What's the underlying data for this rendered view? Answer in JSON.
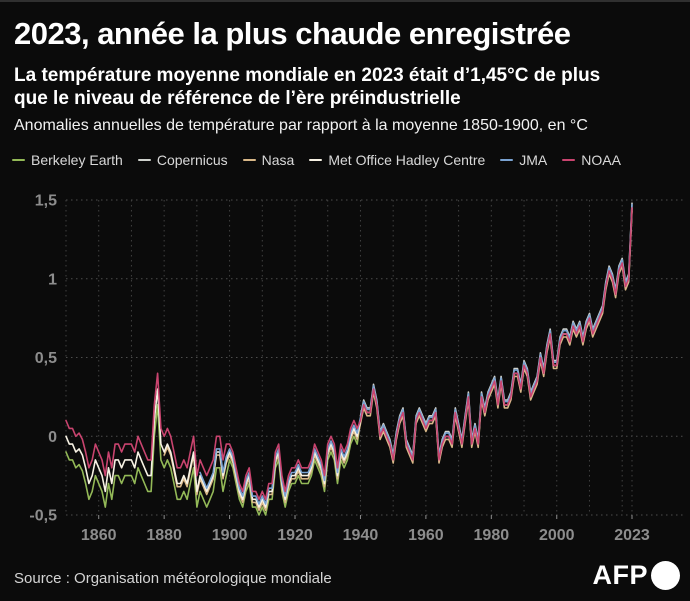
{
  "header": {
    "title": "2023, année la plus chaude enregistrée",
    "subtitle_line1": "La température moyenne mondiale en 2023 était d’1,45°C de plus",
    "subtitle_line2": "que le niveau de référence de l’ère préindustrielle",
    "note": "Anomalies annuelles de température par rapport à la moyenne 1850-1900, en °C"
  },
  "footer": {
    "source": "Source : Organisation météorologique mondiale",
    "logo": "AFP"
  },
  "colors": {
    "background": "#0b0b0b",
    "title_text": "#ffffff",
    "legend_text": "#d9d9d9",
    "axis_labels": "#8d8d8d",
    "grid": "#4d4d4d",
    "grid_vertical": "#414141"
  },
  "chart_data": {
    "type": "line",
    "title": "Anomalies annuelles de température par rapport à la moyenne 1850-1900, en °C",
    "xlabel": "",
    "ylabel": "°C",
    "xlim": [
      1850,
      2023
    ],
    "ylim": [
      -0.5,
      1.5
    ],
    "grid": "dotted",
    "legend_position": "top",
    "y_ticks": [
      {
        "value": 1.5,
        "label": "1,5"
      },
      {
        "value": 1.0,
        "label": "1"
      },
      {
        "value": 0.5,
        "label": "0,5"
      },
      {
        "value": 0.0,
        "label": "0"
      },
      {
        "value": -0.5,
        "label": "-0,5"
      }
    ],
    "x_ticks": [
      {
        "year": 1860,
        "label": "1860"
      },
      {
        "year": 1880,
        "label": "1880"
      },
      {
        "year": 1900,
        "label": "1900"
      },
      {
        "year": 1920,
        "label": "1920"
      },
      {
        "year": 1940,
        "label": "1940"
      },
      {
        "year": 1960,
        "label": "1960"
      },
      {
        "year": 1980,
        "label": "1980"
      },
      {
        "year": 2000,
        "label": "2000"
      },
      {
        "year": 2023,
        "label": "2023"
      }
    ],
    "x_gridline_years": [
      1850,
      1860,
      1870,
      1880,
      1890,
      1900,
      1910,
      1920,
      1930,
      1940,
      1950,
      1960,
      1970,
      1980,
      1990,
      2000,
      2010,
      2020,
      2023
    ],
    "series": [
      {
        "name": "Berkeley Earth",
        "color": "#93b957",
        "start_year": 1850,
        "values": [
          -0.1,
          -0.15,
          -0.15,
          -0.2,
          -0.18,
          -0.22,
          -0.3,
          -0.4,
          -0.35,
          -0.25,
          -0.3,
          -0.35,
          -0.45,
          -0.3,
          -0.4,
          -0.25,
          -0.25,
          -0.3,
          -0.25,
          -0.25,
          -0.25,
          -0.3,
          -0.2,
          -0.25,
          -0.3,
          -0.35,
          -0.35,
          0.0,
          0.2,
          -0.15,
          -0.2,
          -0.15,
          -0.2,
          -0.3,
          -0.4,
          -0.4,
          -0.35,
          -0.4,
          -0.3,
          -0.2,
          -0.45,
          -0.35,
          -0.4,
          -0.45,
          -0.4,
          -0.35,
          -0.2,
          -0.2,
          -0.35,
          -0.25,
          -0.15,
          -0.2,
          -0.3,
          -0.4,
          -0.45,
          -0.35,
          -0.3,
          -0.45,
          -0.45,
          -0.5,
          -0.45,
          -0.5,
          -0.4,
          -0.4,
          -0.2,
          -0.15,
          -0.35,
          -0.45,
          -0.35,
          -0.3,
          -0.3,
          -0.25,
          -0.3,
          -0.3,
          -0.3,
          -0.25,
          -0.15,
          -0.2,
          -0.25,
          -0.35,
          -0.15,
          -0.1,
          -0.15,
          -0.3,
          -0.15,
          -0.2,
          -0.15,
          -0.05,
          0.0,
          -0.05,
          0.1,
          0.2,
          0.15,
          0.15,
          0.3,
          0.2,
          0.0,
          0.05,
          0.0,
          -0.05,
          -0.15,
          0.0,
          0.1,
          0.15,
          -0.05,
          -0.1,
          -0.15,
          0.1,
          0.15,
          0.1,
          0.05,
          0.1,
          0.1,
          0.15,
          -0.15,
          -0.05,
          0.0,
          0.0,
          -0.05,
          0.15,
          0.05,
          -0.05,
          0.1,
          0.25,
          -0.05,
          0.05,
          -0.05,
          0.25,
          0.15,
          0.25,
          0.3,
          0.35,
          0.2,
          0.35,
          0.2,
          0.2,
          0.25,
          0.4,
          0.4,
          0.3,
          0.45,
          0.4,
          0.25,
          0.3,
          0.35,
          0.5,
          0.4,
          0.55,
          0.65,
          0.45,
          0.45,
          0.6,
          0.65,
          0.65,
          0.6,
          0.7,
          0.65,
          0.7,
          0.6,
          0.7,
          0.75,
          0.65,
          0.7,
          0.75,
          0.8,
          0.95,
          1.05,
          1.0,
          0.9,
          1.05,
          1.1,
          0.95,
          1.0,
          1.45
        ]
      },
      {
        "name": "Copernicus",
        "color": "#cfd2cd",
        "start_year": 1940,
        "values": [
          0.13,
          0.23,
          0.18,
          0.18,
          0.33,
          0.23,
          0.03,
          0.08,
          0.03,
          -0.02,
          -0.12,
          0.03,
          0.13,
          0.18,
          -0.02,
          -0.07,
          -0.12,
          0.13,
          0.18,
          0.13,
          0.08,
          0.13,
          0.13,
          0.18,
          -0.12,
          -0.02,
          0.03,
          0.03,
          -0.02,
          0.18,
          0.08,
          -0.02,
          0.13,
          0.28,
          -0.02,
          0.08,
          -0.02,
          0.28,
          0.18,
          0.28,
          0.33,
          0.38,
          0.23,
          0.38,
          0.23,
          0.23,
          0.28,
          0.43,
          0.43,
          0.33,
          0.48,
          0.43,
          0.28,
          0.33,
          0.38,
          0.53,
          0.43,
          0.58,
          0.68,
          0.48,
          0.48,
          0.63,
          0.68,
          0.68,
          0.63,
          0.73,
          0.68,
          0.73,
          0.63,
          0.73,
          0.78,
          0.68,
          0.73,
          0.78,
          0.83,
          0.98,
          1.08,
          1.03,
          0.93,
          1.08,
          1.13,
          0.98,
          1.03,
          1.48
        ]
      },
      {
        "name": "Nasa",
        "color": "#d9b888",
        "start_year": 1880,
        "values": [
          -0.12,
          -0.07,
          -0.12,
          -0.22,
          -0.32,
          -0.32,
          -0.27,
          -0.32,
          -0.22,
          -0.12,
          -0.37,
          -0.27,
          -0.32,
          -0.37,
          -0.32,
          -0.27,
          -0.12,
          -0.12,
          -0.27,
          -0.17,
          -0.12,
          -0.17,
          -0.27,
          -0.37,
          -0.42,
          -0.32,
          -0.27,
          -0.42,
          -0.42,
          -0.47,
          -0.42,
          -0.47,
          -0.37,
          -0.37,
          -0.17,
          -0.12,
          -0.32,
          -0.42,
          -0.32,
          -0.27,
          -0.27,
          -0.22,
          -0.27,
          -0.27,
          -0.27,
          -0.22,
          -0.12,
          -0.17,
          -0.22,
          -0.32,
          -0.12,
          -0.07,
          -0.12,
          -0.27,
          -0.12,
          -0.17,
          -0.12,
          -0.02,
          0.03,
          -0.02,
          0.08,
          0.18,
          0.13,
          0.13,
          0.28,
          0.18,
          -0.02,
          0.03,
          -0.02,
          -0.07,
          -0.17,
          -0.02,
          0.08,
          0.13,
          -0.07,
          -0.12,
          -0.17,
          0.08,
          0.13,
          0.08,
          0.03,
          0.08,
          0.08,
          0.13,
          -0.17,
          -0.07,
          -0.02,
          -0.02,
          -0.07,
          0.13,
          0.03,
          -0.07,
          0.08,
          0.23,
          -0.07,
          0.03,
          -0.07,
          0.23,
          0.13,
          0.23,
          0.28,
          0.33,
          0.18,
          0.33,
          0.18,
          0.18,
          0.23,
          0.38,
          0.38,
          0.28,
          0.43,
          0.38,
          0.23,
          0.28,
          0.33,
          0.48,
          0.38,
          0.53,
          0.63,
          0.43,
          0.43,
          0.58,
          0.63,
          0.63,
          0.58,
          0.68,
          0.63,
          0.68,
          0.58,
          0.68,
          0.73,
          0.63,
          0.68,
          0.73,
          0.78,
          0.93,
          1.03,
          0.98,
          0.88,
          1.03,
          1.08,
          0.93,
          0.98,
          1.43
        ]
      },
      {
        "name": "Met Office Hadley Centre",
        "color": "#f7f2e4",
        "start_year": 1850,
        "values": [
          0.0,
          -0.05,
          -0.05,
          -0.1,
          -0.08,
          -0.12,
          -0.2,
          -0.3,
          -0.25,
          -0.15,
          -0.2,
          -0.25,
          -0.35,
          -0.2,
          -0.3,
          -0.15,
          -0.15,
          -0.2,
          -0.15,
          -0.15,
          -0.15,
          -0.2,
          -0.1,
          -0.15,
          -0.2,
          -0.25,
          -0.25,
          0.1,
          0.3,
          -0.05,
          -0.1,
          -0.05,
          -0.1,
          -0.2,
          -0.3,
          -0.3,
          -0.25,
          -0.3,
          -0.2,
          -0.1,
          -0.35,
          -0.25,
          -0.3,
          -0.35,
          -0.3,
          -0.25,
          -0.1,
          -0.1,
          -0.25,
          -0.15,
          -0.1,
          -0.15,
          -0.25,
          -0.35,
          -0.4,
          -0.3,
          -0.25,
          -0.4,
          -0.4,
          -0.45,
          -0.4,
          -0.45,
          -0.35,
          -0.35,
          -0.15,
          -0.1,
          -0.3,
          -0.4,
          -0.3,
          -0.25,
          -0.25,
          -0.2,
          -0.25,
          -0.25,
          -0.25,
          -0.2,
          -0.1,
          -0.15,
          -0.2,
          -0.3,
          -0.1,
          -0.05,
          -0.1,
          -0.25,
          -0.1,
          -0.15,
          -0.1,
          0.0,
          0.05,
          0.0,
          0.1,
          0.2,
          0.15,
          0.15,
          0.3,
          0.2,
          0.0,
          0.05,
          0.0,
          -0.05,
          -0.15,
          0.0,
          0.1,
          0.15,
          -0.05,
          -0.1,
          -0.15,
          0.1,
          0.15,
          0.1,
          0.05,
          0.1,
          0.1,
          0.15,
          -0.15,
          -0.05,
          0.0,
          0.0,
          -0.05,
          0.15,
          0.05,
          -0.05,
          0.1,
          0.25,
          -0.05,
          0.05,
          -0.05,
          0.25,
          0.15,
          0.25,
          0.3,
          0.35,
          0.2,
          0.35,
          0.2,
          0.2,
          0.25,
          0.4,
          0.4,
          0.3,
          0.45,
          0.4,
          0.25,
          0.3,
          0.35,
          0.5,
          0.4,
          0.55,
          0.65,
          0.45,
          0.45,
          0.6,
          0.65,
          0.65,
          0.6,
          0.7,
          0.65,
          0.7,
          0.6,
          0.7,
          0.75,
          0.65,
          0.7,
          0.75,
          0.8,
          0.95,
          1.05,
          1.0,
          0.9,
          1.05,
          1.1,
          0.95,
          1.0,
          1.45
        ]
      },
      {
        "name": "JMA",
        "color": "#7aa3d2",
        "start_year": 1891,
        "values": [
          -0.23,
          -0.28,
          -0.33,
          -0.28,
          -0.23,
          -0.08,
          -0.08,
          -0.23,
          -0.13,
          -0.08,
          -0.13,
          -0.23,
          -0.33,
          -0.38,
          -0.28,
          -0.23,
          -0.38,
          -0.38,
          -0.43,
          -0.38,
          -0.43,
          -0.33,
          -0.33,
          -0.13,
          -0.08,
          -0.28,
          -0.38,
          -0.28,
          -0.23,
          -0.23,
          -0.18,
          -0.23,
          -0.23,
          -0.23,
          -0.18,
          -0.08,
          -0.13,
          -0.18,
          -0.28,
          -0.08,
          -0.03,
          -0.08,
          -0.23,
          -0.08,
          -0.13,
          -0.08,
          0.02,
          0.07,
          0.02,
          0.12,
          0.22,
          0.17,
          0.17,
          0.32,
          0.22,
          0.02,
          0.07,
          0.02,
          -0.03,
          -0.13,
          0.02,
          0.12,
          0.17,
          -0.03,
          -0.08,
          -0.13,
          0.12,
          0.17,
          0.12,
          0.07,
          0.12,
          0.12,
          0.17,
          -0.13,
          -0.03,
          0.02,
          0.02,
          -0.03,
          0.17,
          0.07,
          -0.03,
          0.12,
          0.27,
          -0.03,
          0.07,
          -0.03,
          0.27,
          0.17,
          0.27,
          0.32,
          0.37,
          0.22,
          0.37,
          0.22,
          0.22,
          0.27,
          0.42,
          0.42,
          0.32,
          0.47,
          0.42,
          0.27,
          0.32,
          0.37,
          0.52,
          0.42,
          0.57,
          0.67,
          0.47,
          0.47,
          0.62,
          0.67,
          0.67,
          0.62,
          0.72,
          0.67,
          0.72,
          0.62,
          0.72,
          0.77,
          0.67,
          0.72,
          0.77,
          0.82,
          0.97,
          1.07,
          1.02,
          0.92,
          1.07,
          1.12,
          0.97,
          1.02,
          1.47
        ]
      },
      {
        "name": "NOAA",
        "color": "#c9446f",
        "start_year": 1850,
        "values": [
          0.1,
          0.05,
          0.05,
          0.0,
          0.02,
          -0.02,
          -0.1,
          -0.2,
          -0.15,
          -0.05,
          -0.1,
          -0.15,
          -0.25,
          -0.1,
          -0.2,
          -0.05,
          -0.05,
          -0.1,
          -0.05,
          -0.05,
          -0.05,
          -0.1,
          0.0,
          -0.05,
          -0.1,
          -0.15,
          -0.15,
          0.2,
          0.4,
          0.05,
          0.0,
          0.05,
          0.0,
          -0.1,
          -0.2,
          -0.2,
          -0.15,
          -0.2,
          -0.1,
          0.0,
          -0.25,
          -0.15,
          -0.2,
          -0.25,
          -0.2,
          -0.15,
          0.0,
          0.0,
          -0.15,
          -0.05,
          -0.05,
          -0.1,
          -0.2,
          -0.3,
          -0.35,
          -0.25,
          -0.2,
          -0.35,
          -0.35,
          -0.4,
          -0.35,
          -0.4,
          -0.3,
          -0.3,
          -0.1,
          -0.05,
          -0.25,
          -0.35,
          -0.25,
          -0.2,
          -0.2,
          -0.15,
          -0.2,
          -0.2,
          -0.2,
          -0.15,
          -0.05,
          -0.1,
          -0.15,
          -0.25,
          -0.05,
          0.0,
          -0.05,
          -0.2,
          -0.05,
          -0.1,
          -0.05,
          0.05,
          0.1,
          0.05,
          0.1,
          0.2,
          0.15,
          0.15,
          0.3,
          0.2,
          0.0,
          0.05,
          0.0,
          -0.05,
          -0.15,
          0.0,
          0.1,
          0.15,
          -0.05,
          -0.1,
          -0.15,
          0.1,
          0.15,
          0.1,
          0.05,
          0.1,
          0.1,
          0.15,
          -0.15,
          -0.05,
          0.0,
          0.0,
          -0.05,
          0.15,
          0.05,
          -0.05,
          0.1,
          0.25,
          -0.05,
          0.05,
          -0.05,
          0.25,
          0.15,
          0.25,
          0.3,
          0.35,
          0.2,
          0.35,
          0.2,
          0.2,
          0.25,
          0.4,
          0.4,
          0.3,
          0.45,
          0.4,
          0.25,
          0.3,
          0.35,
          0.5,
          0.4,
          0.55,
          0.65,
          0.45,
          0.45,
          0.6,
          0.65,
          0.65,
          0.6,
          0.7,
          0.65,
          0.7,
          0.6,
          0.7,
          0.75,
          0.65,
          0.7,
          0.75,
          0.8,
          0.95,
          1.05,
          1.0,
          0.9,
          1.05,
          1.1,
          0.95,
          1.0,
          1.45
        ]
      }
    ]
  }
}
